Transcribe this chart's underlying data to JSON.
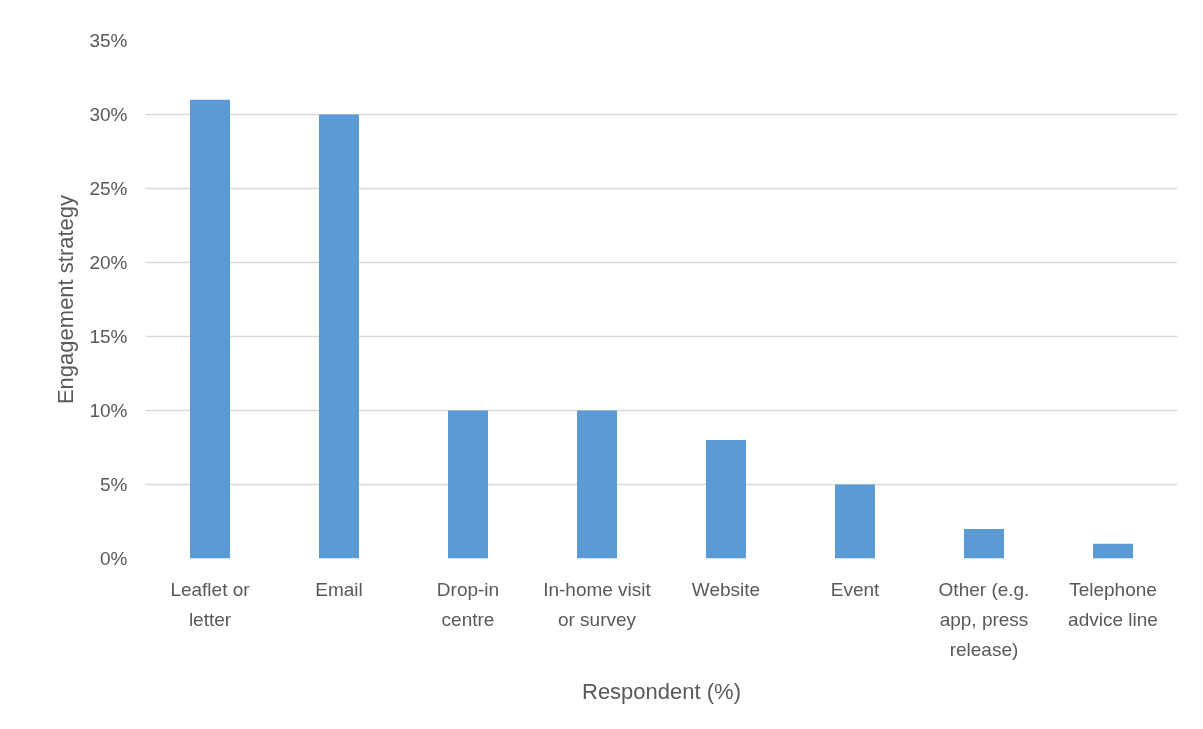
{
  "chart_data": {
    "type": "bar",
    "xlabel": "Respondent (%)",
    "ylabel": "Engagement strategy",
    "categories": [
      "Leaflet or letter",
      "Email",
      "Drop-in centre",
      "In-home visit or survey",
      "Website",
      "Event",
      "Other (e.g. app, press release)",
      "Telephone advice line"
    ],
    "values": [
      31,
      30,
      10,
      10,
      8,
      5,
      2,
      1
    ],
    "color": "#5b9bd5",
    "ylim": [
      0,
      35
    ],
    "yticks": [
      {
        "value": 0,
        "label": "0%"
      },
      {
        "value": 5,
        "label": "5%"
      },
      {
        "value": 10,
        "label": "10%"
      },
      {
        "value": 15,
        "label": "15%"
      },
      {
        "value": 20,
        "label": "20%"
      },
      {
        "value": 25,
        "label": "25%"
      },
      {
        "value": 30,
        "label": "30%"
      },
      {
        "value": 35,
        "label": "35%"
      }
    ],
    "grid": "y"
  }
}
